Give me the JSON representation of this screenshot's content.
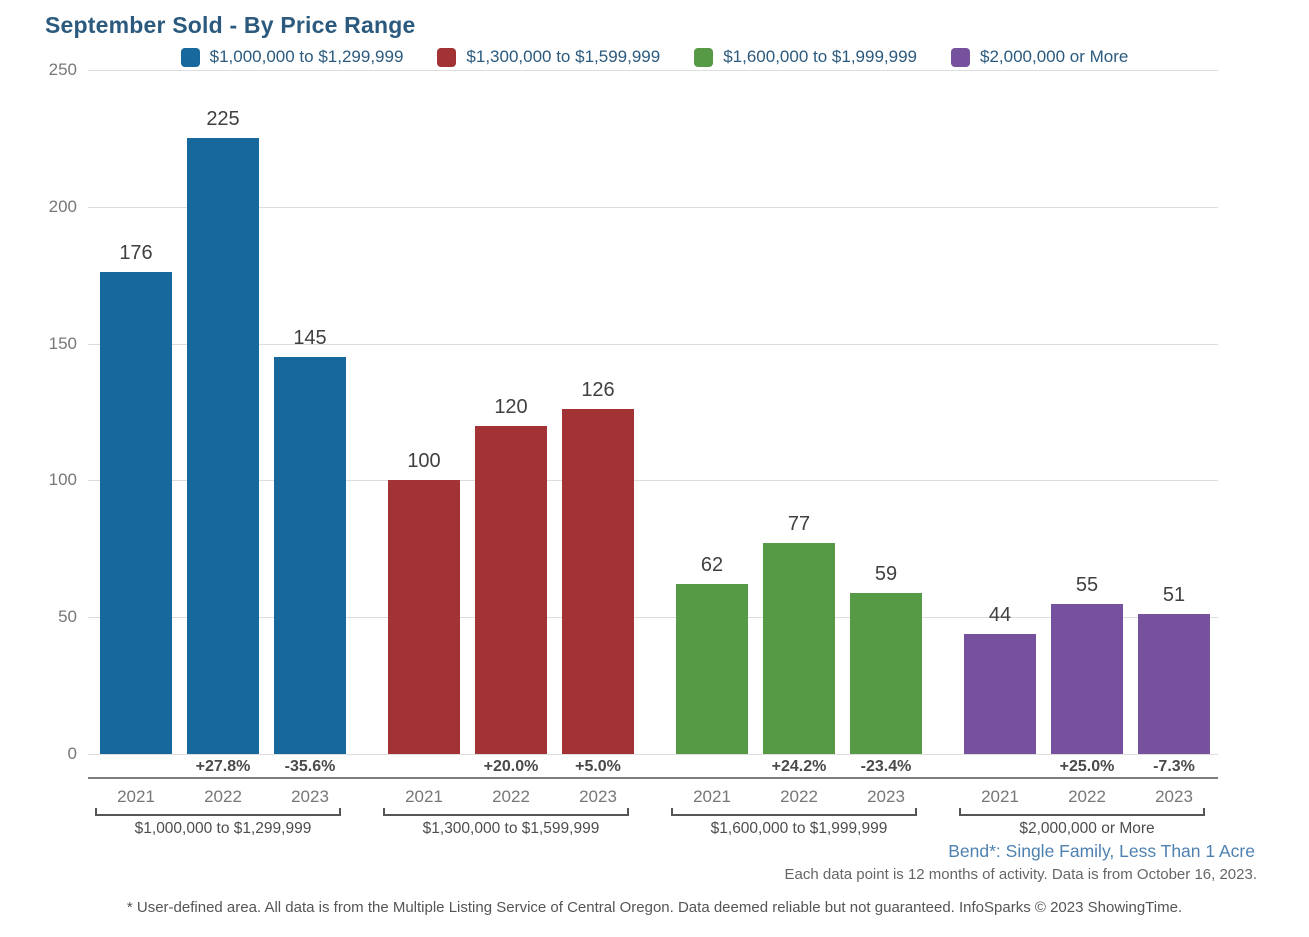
{
  "title": "September Sold - By Price Range",
  "chart_data": {
    "type": "bar",
    "title": "September Sold - By Price Range",
    "xlabel": "",
    "ylabel": "",
    "ylim": [
      0,
      250
    ],
    "yticks": [
      0,
      50,
      100,
      150,
      200,
      250
    ],
    "grid": true,
    "legend_position": "top",
    "categories": [
      "2021",
      "2022",
      "2023"
    ],
    "legend": [
      {
        "label": "$1,000,000 to $1,299,999",
        "color": "#17689D"
      },
      {
        "label": "$1,300,000 to $1,599,999",
        "color": "#A23234"
      },
      {
        "label": "$1,600,000 to $1,999,999",
        "color": "#579A46"
      },
      {
        "label": "$2,000,000 or More",
        "color": "#75519E"
      }
    ],
    "groups": [
      {
        "label": "$1,000,000 to $1,299,999",
        "color": "#17689D",
        "values": [
          176,
          225,
          145
        ],
        "pct_change": [
          "",
          "+27.8%",
          "-35.6%"
        ]
      },
      {
        "label": "$1,300,000 to $1,599,999",
        "color": "#A23234",
        "values": [
          100,
          120,
          126
        ],
        "pct_change": [
          "",
          "+20.0%",
          "+5.0%"
        ]
      },
      {
        "label": "$1,600,000 to $1,999,999",
        "color": "#579A46",
        "values": [
          62,
          77,
          59
        ],
        "pct_change": [
          "",
          "+24.2%",
          "-23.4%"
        ]
      },
      {
        "label": "$2,000,000 or More",
        "color": "#75519E",
        "values": [
          44,
          55,
          51
        ],
        "pct_change": [
          "",
          "+25.0%",
          "-7.3%"
        ]
      }
    ]
  },
  "footer": {
    "region_note": "Bend*: Single Family, Less Than 1 Acre",
    "data_note": "Each data point is 12 months of activity. Data is from October 16, 2023.",
    "disclaimer": "* User-defined area. All data is from the Multiple Listing Service of Central Oregon. Data deemed reliable but not guaranteed. InfoSparks © 2023 ShowingTime."
  }
}
